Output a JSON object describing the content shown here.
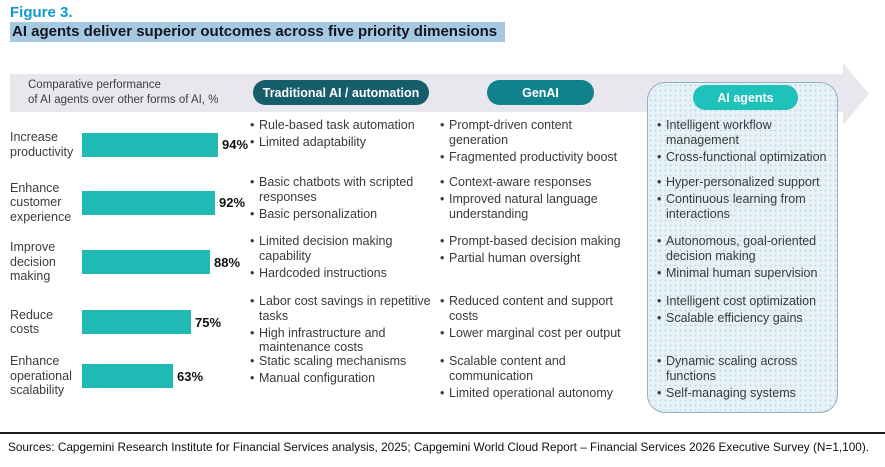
{
  "figure": {
    "label": "Figure 3.",
    "title": "AI agents deliver superior outcomes across five priority dimensions"
  },
  "header": {
    "caption": "Comparative performance\nof AI agents over other forms of AI, %",
    "columns": [
      {
        "label": "Traditional AI / automation",
        "color": "#175d6b"
      },
      {
        "label": "GenAI",
        "color": "#11818c"
      },
      {
        "label": "AI agents",
        "color": "#1fc1bb"
      }
    ]
  },
  "chart_data": {
    "type": "bar",
    "orientation": "horizontal",
    "title": "Comparative performance of AI agents over other forms of AI, %",
    "categories": [
      "Increase productivity",
      "Enhance customer experience",
      "Improve decision making",
      "Reduce costs",
      "Enhance operational scalability"
    ],
    "values": [
      94,
      92,
      88,
      75,
      63
    ],
    "value_labels": [
      "94%",
      "92%",
      "88%",
      "75%",
      "63%"
    ],
    "unit": "%",
    "bar_color": "#1fbab4",
    "xlim": [
      0,
      100
    ],
    "grid": false,
    "legend": "none"
  },
  "rows": [
    {
      "dimension": "Increase productivity",
      "value_label": "94%",
      "traditional": [
        "Rule-based task automation",
        "Limited adaptability"
      ],
      "genai": [
        "Prompt-driven content generation",
        "Fragmented productivity boost"
      ],
      "ai_agents": [
        "Intelligent workflow management",
        "Cross-functional optimization"
      ]
    },
    {
      "dimension": "Enhance customer experience",
      "value_label": "92%",
      "traditional": [
        "Basic chatbots with scripted responses",
        "Basic personalization"
      ],
      "genai": [
        "Context-aware responses",
        "Improved natural language understanding"
      ],
      "ai_agents": [
        "Hyper-personalized support",
        "Continuous learning from interactions"
      ]
    },
    {
      "dimension": "Improve decision making",
      "value_label": "88%",
      "traditional": [
        "Limited decision making capability",
        "Hardcoded instructions"
      ],
      "genai": [
        "Prompt-based decision making",
        "Partial human oversight"
      ],
      "ai_agents": [
        "Autonomous, goal-oriented decision making",
        "Minimal human supervision"
      ]
    },
    {
      "dimension": "Reduce costs",
      "value_label": "75%",
      "traditional": [
        "Labor cost savings in repetitive tasks",
        "High infrastructure and maintenance costs"
      ],
      "genai": [
        "Reduced content and support costs",
        "Lower marginal cost per output"
      ],
      "ai_agents": [
        "Intelligent cost optimization",
        "Scalable efficiency gains"
      ]
    },
    {
      "dimension": "Enhance operational scalability",
      "value_label": "63%",
      "traditional": [
        "Static scaling mechanisms",
        "Manual configuration"
      ],
      "genai": [
        "Scalable content and communication",
        "Limited operational autonomy"
      ],
      "ai_agents": [
        "Dynamic scaling across functions",
        "Self-managing systems"
      ]
    }
  ],
  "footer": {
    "sources": "Sources: Capgemini Research Institute for Financial Services analysis, 2025; Capgemini World Cloud Report – Financial Services 2026 Executive Survey (N=1,100)."
  }
}
